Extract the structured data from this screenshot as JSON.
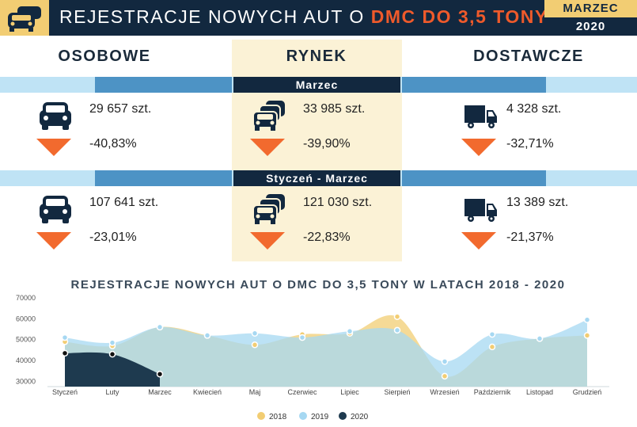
{
  "header": {
    "title": "REJESTRACJE NOWYCH AUT O",
    "title_highlight": "DMC DO 3,5 TONY",
    "month": "MARZEC",
    "year": "2020"
  },
  "columns": [
    "OSOBOWE",
    "RYNEK",
    "DOSTAWCZE"
  ],
  "sections": [
    {
      "label": "Marzec",
      "items": [
        {
          "value": "29 657 szt.",
          "change": "-40,83%"
        },
        {
          "value": "33 985 szt.",
          "change": "-39,90%"
        },
        {
          "value": "4 328 szt.",
          "change": "-32,71%"
        }
      ]
    },
    {
      "label": "Styczeń - Marzec",
      "items": [
        {
          "value": "107 641 szt.",
          "change": "-23,01%"
        },
        {
          "value": "121 030 szt.",
          "change": "-22,83%"
        },
        {
          "value": "13 389 szt.",
          "change": "-21,37%"
        }
      ]
    }
  ],
  "chart_data": {
    "type": "area",
    "title": "REJESTRACJE NOWYCH AUT O DMC DO 3,5 TONY W LATACH 2018 - 2020",
    "categories": [
      "Styczeń",
      "Luty",
      "Marzec",
      "Kwiecień",
      "Maj",
      "Czerwiec",
      "Lipiec",
      "Sierpień",
      "Wrzesień",
      "Październik",
      "Listopad",
      "Grudzień"
    ],
    "series": [
      {
        "name": "2018",
        "color": "#f2cd73",
        "values": [
          49000,
          47000,
          56000,
          52000,
          47500,
          52500,
          53000,
          61000,
          32500,
          46500,
          50500,
          52000
        ]
      },
      {
        "name": "2019",
        "color": "#a6d8f2",
        "values": [
          51000,
          48500,
          56000,
          52000,
          53000,
          51000,
          54000,
          54500,
          39500,
          52500,
          50500,
          59500
        ]
      },
      {
        "name": "2020",
        "color": "#1e3a4f",
        "values": [
          43500,
          43000,
          33500,
          null,
          null,
          null,
          null,
          null,
          null,
          null,
          null,
          null
        ]
      }
    ],
    "ylim": [
      27500,
      70000
    ],
    "yticks": [
      30000,
      40000,
      50000,
      60000,
      70000
    ],
    "grid": false,
    "legend": "bottom"
  }
}
